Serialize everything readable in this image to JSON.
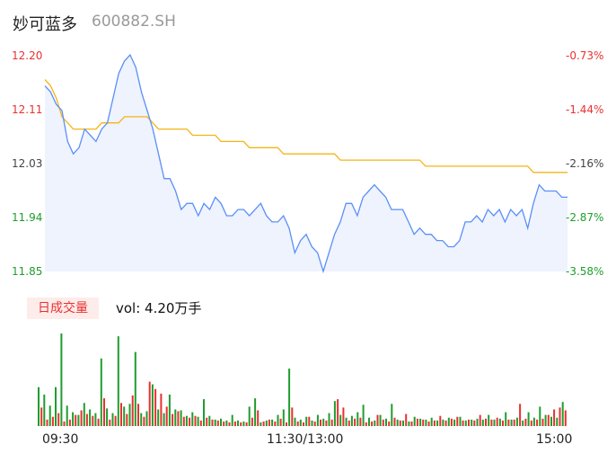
{
  "header": {
    "name": "妙可蓝多",
    "code": "600882.SH"
  },
  "volume_label": {
    "badge": "日成交量",
    "text": "vol: 4.20万手"
  },
  "colors": {
    "price": "#5b8ff9",
    "avg": "#f5b417",
    "up": "#e8312f",
    "down": "#1f9d2e",
    "area": "#eef3fd"
  },
  "chart_data": [
    {
      "type": "line",
      "title": "",
      "y_left_ticks": [
        "12.20",
        "12.11",
        "12.03",
        "11.94",
        "11.85"
      ],
      "y_right_ticks": [
        "-0.73%",
        "-1.44%",
        "-2.16%",
        "-2.87%",
        "-3.58%"
      ],
      "ylim": [
        11.85,
        12.2
      ],
      "x_ticks": [
        "09:30",
        "11:30/13:00",
        "15:00"
      ],
      "series": [
        {
          "values": [
            12.15,
            12.14,
            12.12,
            12.11,
            12.06,
            12.04,
            12.05,
            12.08,
            12.07,
            12.06,
            12.08,
            12.09,
            12.13,
            12.17,
            12.19,
            12.2,
            12.18,
            12.14,
            12.11,
            12.08,
            12.04,
            12.0,
            12.0,
            11.98,
            11.95,
            11.96,
            11.96,
            11.94,
            11.96,
            11.95,
            11.97,
            11.96,
            11.94,
            11.94,
            11.95,
            11.95,
            11.94,
            11.95,
            11.96,
            11.94,
            11.93,
            11.93,
            11.94,
            11.92,
            11.88,
            11.9,
            11.91,
            11.89,
            11.88,
            11.85,
            11.88,
            11.91,
            11.93,
            11.96,
            11.96,
            11.94,
            11.97,
            11.98,
            11.99,
            11.98,
            11.97,
            11.95,
            11.95,
            11.95,
            11.93,
            11.91,
            11.92,
            11.91,
            11.91,
            11.9,
            11.9,
            11.89,
            11.89,
            11.9,
            11.93,
            11.93,
            11.94,
            11.93,
            11.95,
            11.94,
            11.95,
            11.93,
            11.95,
            11.94,
            11.95,
            11.92,
            11.96,
            11.99,
            11.98,
            11.98,
            11.98,
            11.97,
            11.97
          ]
        },
        {
          "values": [
            12.16,
            12.15,
            12.13,
            12.1,
            12.09,
            12.08,
            12.08,
            12.08,
            12.08,
            12.08,
            12.09,
            12.09,
            12.09,
            12.09,
            12.1,
            12.1,
            12.1,
            12.1,
            12.1,
            12.09,
            12.08,
            12.08,
            12.08,
            12.08,
            12.08,
            12.08,
            12.07,
            12.07,
            12.07,
            12.07,
            12.07,
            12.06,
            12.06,
            12.06,
            12.06,
            12.06,
            12.05,
            12.05,
            12.05,
            12.05,
            12.05,
            12.05,
            12.04,
            12.04,
            12.04,
            12.04,
            12.04,
            12.04,
            12.04,
            12.04,
            12.04,
            12.04,
            12.03,
            12.03,
            12.03,
            12.03,
            12.03,
            12.03,
            12.03,
            12.03,
            12.03,
            12.03,
            12.03,
            12.03,
            12.03,
            12.03,
            12.03,
            12.02,
            12.02,
            12.02,
            12.02,
            12.02,
            12.02,
            12.02,
            12.02,
            12.02,
            12.02,
            12.02,
            12.02,
            12.02,
            12.02,
            12.02,
            12.02,
            12.02,
            12.02,
            12.02,
            12.01,
            12.01,
            12.01,
            12.01,
            12.01,
            12.01,
            12.01
          ]
        }
      ]
    },
    {
      "type": "bar",
      "title": "",
      "series": [
        {
          "values": [
            0.42,
            0.34,
            0.22,
            0.42,
            1.0,
            0.22,
            0.15,
            0.12,
            0.25,
            0.18,
            0.14,
            0.73,
            0.19,
            0.14,
            0.97,
            0.21,
            0.24,
            0.8,
            0.14,
            0.16,
            0.45,
            0.18,
            0.14,
            0.34,
            0.18,
            0.17,
            0.11,
            0.15,
            0.1,
            0.29,
            0.11,
            0.07,
            0.08,
            0.06,
            0.12,
            0.06,
            0.05,
            0.21,
            0.3,
            0.04,
            0.06,
            0.07,
            0.12,
            0.18,
            0.62,
            0.09,
            0.07,
            0.1,
            0.06,
            0.12,
            0.08,
            0.14,
            0.27,
            0.12,
            0.09,
            0.11,
            0.15,
            0.23,
            0.09,
            0.06,
            0.12,
            0.08,
            0.24,
            0.07,
            0.06,
            0.05,
            0.1,
            0.08,
            0.07,
            0.09,
            0.06,
            0.07,
            0.09,
            0.07,
            0.1,
            0.06,
            0.07,
            0.08,
            0.07,
            0.12,
            0.07,
            0.08,
            0.15,
            0.07,
            0.09,
            0.06,
            0.15,
            0.09,
            0.21,
            0.12,
            0.1,
            0.09,
            0.26
          ]
        },
        {
          "values": [
            0.2,
            0.07,
            0.1,
            0.14,
            0.05,
            0.07,
            0.12,
            0.17,
            0.13,
            0.11,
            0.08,
            0.3,
            0.07,
            0.11,
            0.25,
            0.13,
            0.33,
            0.24,
            0.1,
            0.48,
            0.4,
            0.35,
            0.21,
            0.13,
            0.16,
            0.1,
            0.09,
            0.11,
            0.06,
            0.09,
            0.07,
            0.06,
            0.05,
            0.04,
            0.05,
            0.04,
            0.04,
            0.09,
            0.17,
            0.05,
            0.07,
            0.05,
            0.08,
            0.04,
            0.2,
            0.05,
            0.04,
            0.1,
            0.05,
            0.07,
            0.06,
            0.07,
            0.29,
            0.2,
            0.06,
            0.08,
            0.09,
            0.04,
            0.05,
            0.12,
            0.07,
            0.05,
            0.09,
            0.06,
            0.13,
            0.05,
            0.08,
            0.07,
            0.05,
            0.06,
            0.11,
            0.06,
            0.08,
            0.1,
            0.06,
            0.07,
            0.06,
            0.12,
            0.08,
            0.07,
            0.09,
            0.06,
            0.07,
            0.07,
            0.24,
            0.08,
            0.06,
            0.07,
            0.08,
            0.12,
            0.18,
            0.2,
            0.17
          ]
        }
      ]
    }
  ]
}
